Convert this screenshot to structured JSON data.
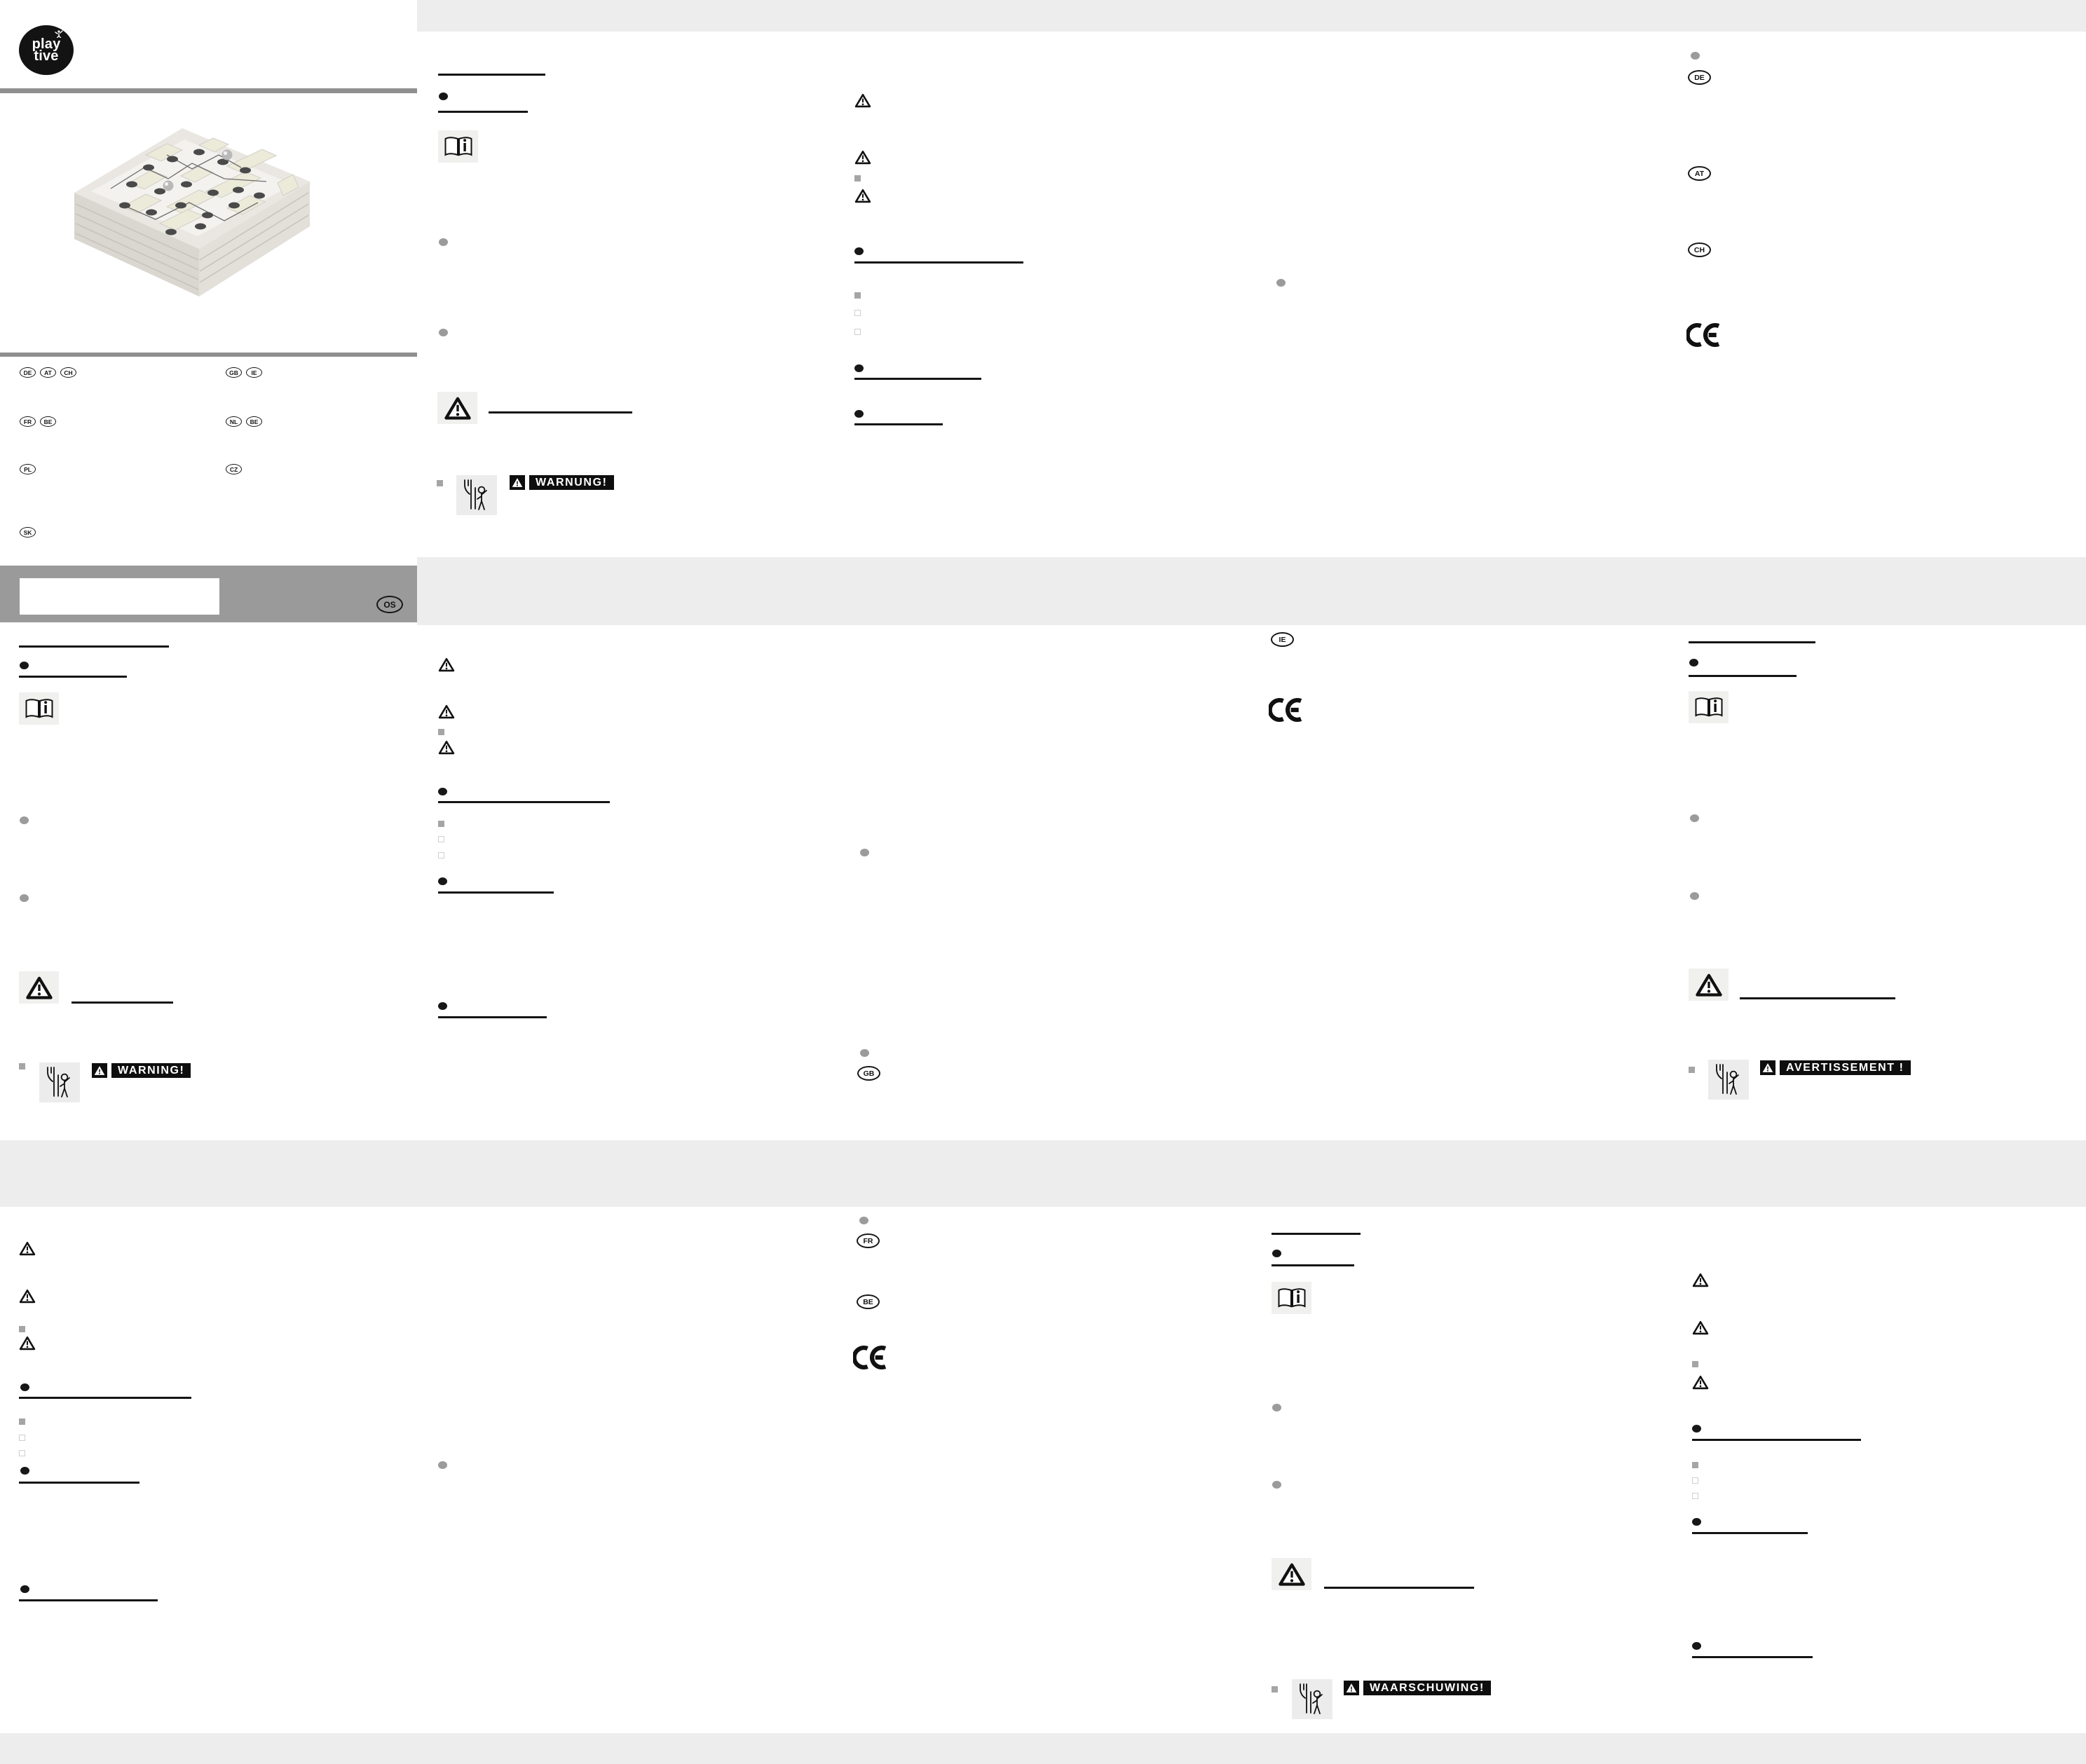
{
  "logo": {
    "top": "play",
    "bottom": "tive"
  },
  "labels": {
    "de": "DE",
    "at": "AT",
    "ch": "CH",
    "gb": "GB",
    "ie": "IE",
    "fr": "FR",
    "be": "BE",
    "nl": "NL",
    "pl": "PL",
    "cz": "CZ",
    "sk": "SK"
  },
  "warnings": {
    "de": "WARNUNG!",
    "en": "WARNING!",
    "fr": "AVERTISSEMENT !",
    "nl": "WAARSCHUWING!"
  },
  "footer": {
    "os": "OS"
  },
  "marks": {
    "ce": "CE"
  }
}
